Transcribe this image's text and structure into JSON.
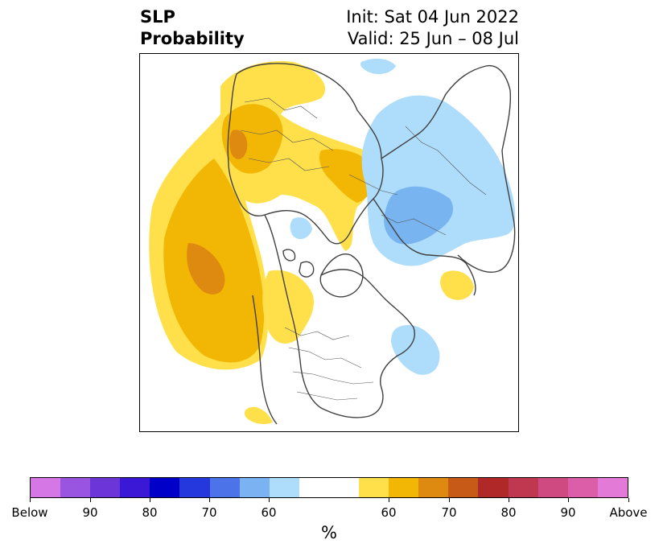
{
  "title": {
    "left_line1": "SLP",
    "left_line2": "Probability",
    "right_line1": "Init: Sat 04 Jun 2022",
    "right_line2": "Valid: 25 Jun – 08 Jul"
  },
  "map": {
    "projection": "north polar stereographic",
    "colors": {
      "land_outline": "#404040",
      "above_60": "#ffe04a",
      "above_65": "#f2b705",
      "above_70": "#de8a10",
      "below_60": "#aedcfb",
      "below_65": "#78b4f0"
    }
  },
  "colorbar": {
    "colors": [
      "#d677e6",
      "#9a55e0",
      "#6b35d8",
      "#3a18d6",
      "#0000c8",
      "#2438de",
      "#4c74e8",
      "#7ab2f2",
      "#aedcfb",
      "#ffffff",
      "#ffffff",
      "#ffe04a",
      "#f2b705",
      "#de8a10",
      "#c85a18",
      "#b02828",
      "#c03850",
      "#ce4a80",
      "#dc5ea8",
      "#e47ad8"
    ],
    "labels": [
      "Below",
      "90",
      "80",
      "70",
      "60",
      "60",
      "70",
      "80",
      "90",
      "Above"
    ],
    "unit": "%"
  }
}
